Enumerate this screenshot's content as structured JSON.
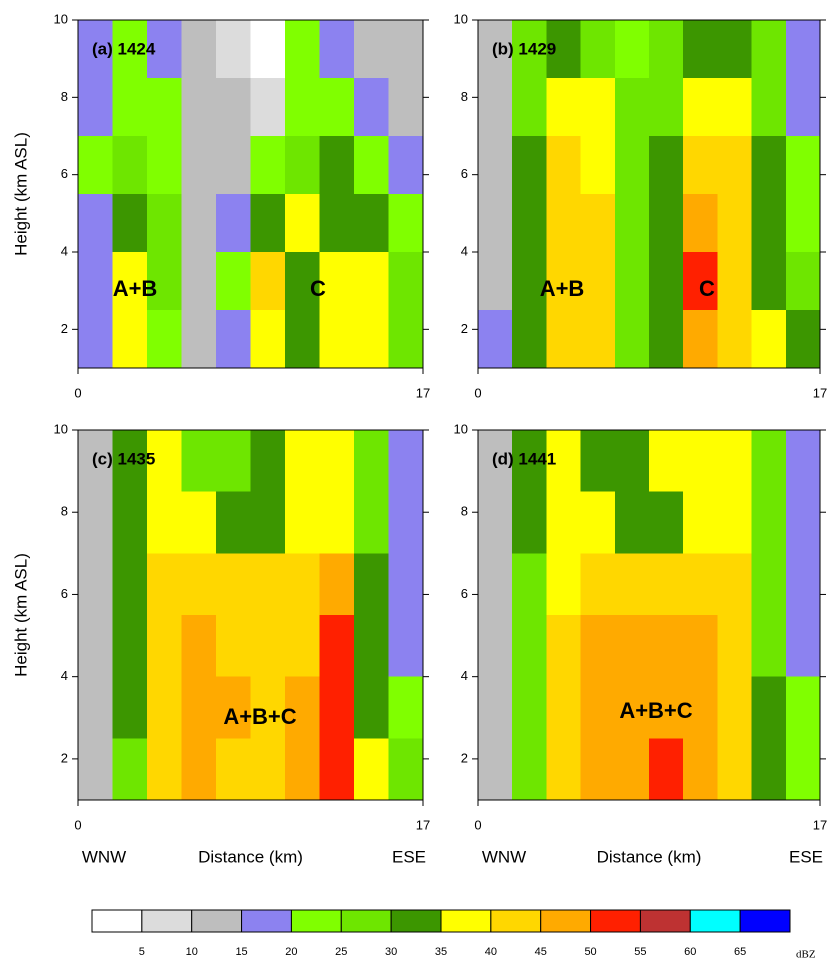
{
  "chart_data": [
    {
      "type": "heatmap",
      "title": "(a) 1424",
      "y_label": "Height (km ASL)",
      "annotations": [
        "A+B",
        "C"
      ],
      "xlim": [
        0,
        17
      ],
      "ylim": [
        1,
        10
      ],
      "xticks": [
        0,
        17
      ],
      "yticks": [
        2,
        4,
        6,
        8,
        10
      ],
      "z": [
        [
          17,
          22,
          17,
          13,
          8,
          3,
          22,
          18,
          13,
          12
        ],
        [
          17,
          22,
          22,
          12,
          12,
          8,
          22,
          22,
          17,
          14
        ],
        [
          22,
          27,
          22,
          13,
          12,
          22,
          27,
          32,
          22,
          17
        ],
        [
          18,
          32,
          27,
          13,
          17,
          32,
          37,
          32,
          32,
          22
        ],
        [
          18,
          38,
          27,
          12,
          22,
          42,
          33,
          38,
          38,
          27
        ],
        [
          17,
          38,
          22,
          12,
          17,
          37,
          32,
          38,
          38,
          27
        ]
      ]
    },
    {
      "type": "heatmap",
      "title": "(b) 1429",
      "annotations": [
        "A+B",
        "C"
      ],
      "xlim": [
        0,
        17
      ],
      "ylim": [
        1,
        10
      ],
      "xticks": [
        0,
        17
      ],
      "yticks": [
        2,
        4,
        6,
        8,
        10
      ],
      "z": [
        [
          12,
          27,
          33,
          27,
          22,
          27,
          33,
          32,
          27,
          17
        ],
        [
          12,
          27,
          38,
          37,
          27,
          27,
          38,
          37,
          27,
          17
        ],
        [
          12,
          32,
          42,
          37,
          27,
          32,
          42,
          42,
          32,
          22
        ],
        [
          12,
          32,
          42,
          42,
          27,
          32,
          47,
          42,
          32,
          22
        ],
        [
          12,
          32,
          43,
          42,
          27,
          32,
          52,
          42,
          32,
          27
        ],
        [
          17,
          32,
          42,
          42,
          27,
          32,
          48,
          42,
          37,
          32
        ]
      ]
    },
    {
      "type": "heatmap",
      "title": "(c) 1435",
      "y_label": "Height (km ASL)",
      "x_label": "Distance (km)",
      "x_left_label": "WNW",
      "x_right_label": "ESE",
      "annotations": [
        "A+B+C"
      ],
      "xlim": [
        0,
        17
      ],
      "ylim": [
        1,
        10
      ],
      "xticks": [
        0,
        17
      ],
      "yticks": [
        2,
        4,
        6,
        8,
        10
      ],
      "z": [
        [
          12,
          32,
          38,
          27,
          27,
          32,
          38,
          38,
          27,
          17
        ],
        [
          12,
          32,
          38,
          37,
          32,
          32,
          38,
          38,
          27,
          17
        ],
        [
          12,
          32,
          42,
          42,
          42,
          42,
          42,
          47,
          32,
          17
        ],
        [
          12,
          32,
          42,
          47,
          43,
          42,
          42,
          52,
          32,
          17
        ],
        [
          12,
          32,
          42,
          47,
          47,
          42,
          47,
          52,
          32,
          22
        ],
        [
          12,
          27,
          42,
          47,
          42,
          42,
          47,
          52,
          37,
          27
        ]
      ]
    },
    {
      "type": "heatmap",
      "title": "(d) 1441",
      "x_label": "Distance (km)",
      "x_left_label": "WNW",
      "x_right_label": "ESE",
      "annotations": [
        "A+B+C"
      ],
      "xlim": [
        0,
        17
      ],
      "ylim": [
        1,
        10
      ],
      "xticks": [
        0,
        17
      ],
      "yticks": [
        2,
        4,
        6,
        8,
        10
      ],
      "z": [
        [
          12,
          32,
          38,
          32,
          32,
          37,
          38,
          38,
          27,
          17
        ],
        [
          12,
          32,
          38,
          37,
          32,
          32,
          38,
          38,
          27,
          17
        ],
        [
          12,
          27,
          38,
          42,
          42,
          42,
          42,
          42,
          27,
          17
        ],
        [
          12,
          27,
          42,
          47,
          47,
          47,
          47,
          42,
          27,
          17
        ],
        [
          12,
          27,
          42,
          47,
          47,
          47,
          47,
          42,
          32,
          22
        ],
        [
          12,
          27,
          42,
          47,
          47,
          52,
          47,
          42,
          32,
          22
        ]
      ]
    }
  ],
  "colorbar": {
    "label": "dBZ",
    "levels": [
      5,
      10,
      15,
      20,
      25,
      30,
      35,
      40,
      45,
      50,
      55,
      60,
      65
    ],
    "colors": [
      "#ffffff",
      "#dcdcdc",
      "#bebebe",
      "#8c82f0",
      "#80ff00",
      "#6ee600",
      "#3c9600",
      "#ffff00",
      "#ffd700",
      "#ffaa00",
      "#ff2000",
      "#be3232",
      "#00ffff",
      "#0000ff"
    ]
  }
}
